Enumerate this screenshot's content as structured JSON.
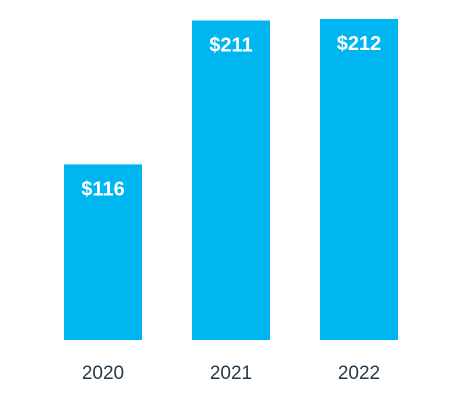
{
  "chart_data": {
    "type": "bar",
    "categories": [
      "2020",
      "2021",
      "2022"
    ],
    "values": [
      116,
      211,
      212
    ],
    "data_labels": [
      "$116",
      "$211",
      "$212"
    ],
    "title": "",
    "xlabel": "",
    "ylabel": "",
    "grid": false,
    "legend": "none",
    "colors": {
      "bar": "#00b6f0",
      "data_label": "#ffffff",
      "tick_label": "#1f3a4d"
    }
  }
}
